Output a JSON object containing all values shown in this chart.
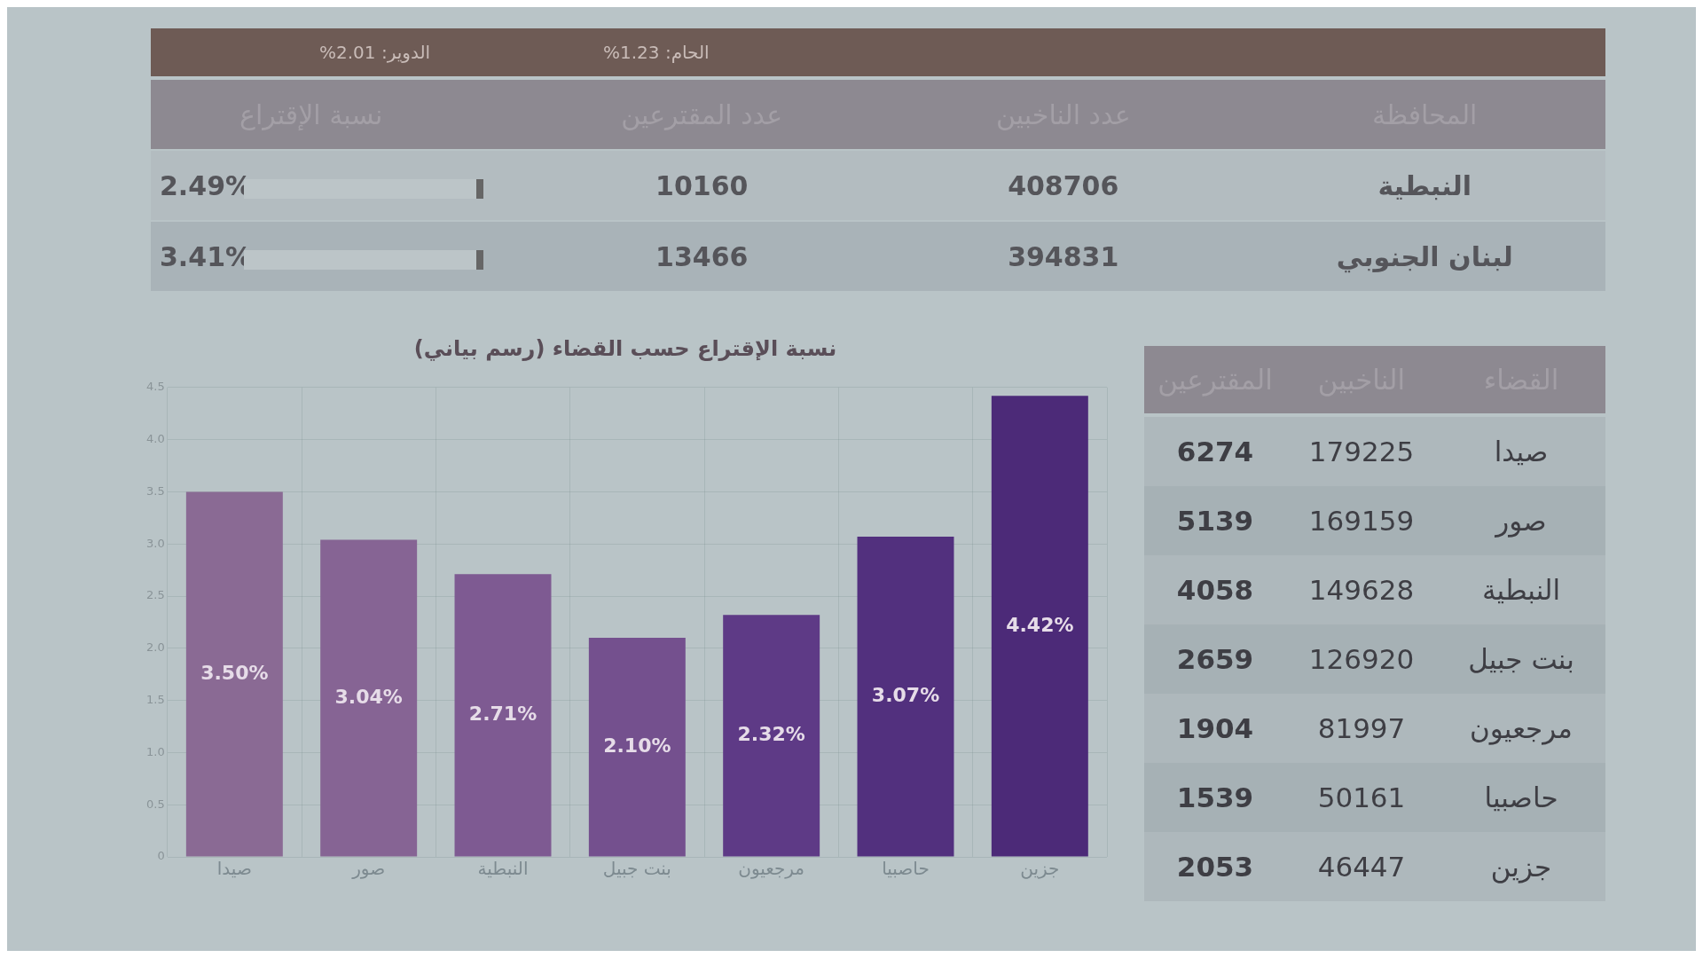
{
  "chart_data": [
    {
      "type": "other",
      "annotations": [
        "الدوير: 2.01%",
        "الحام: 1.23%",
        "نسبة الإقتراع",
        "عدد المقترعين",
        "عدد الناخبين",
        "المحافظة",
        "2.49%",
        "10160",
        "408706",
        "النبطية",
        "3.41%",
        "13466",
        "394831",
        "لبنان الجنوبي"
      ]
    },
    {
      "type": "bar",
      "title": "نسبة الإقتراع حسب القضاء (رسم بياني)",
      "categories": [
        "صيدا",
        "صور",
        "النبطية",
        "بنت جبيل",
        "مرجعيون",
        "حاصبيا",
        "جزين"
      ],
      "values": [
        3.5,
        3.04,
        2.71,
        2.1,
        2.32,
        3.07,
        4.42
      ],
      "value_labels": [
        "3.50%",
        "3.04%",
        "2.71%",
        "2.10%",
        "2.32%",
        "3.07%",
        "4.42%"
      ],
      "colors": [
        "#8a6a94",
        "#866494",
        "#7e5a92",
        "#74508e",
        "#5e3a86",
        "#52307e",
        "#4c2a78"
      ],
      "ylim": [
        0,
        4.5
      ],
      "yticks": [
        {
          "value": 0,
          "label": "0"
        },
        {
          "value": 0.5,
          "label": "0.5"
        },
        {
          "value": 1,
          "label": "1.0"
        },
        {
          "value": 1.5,
          "label": "1.5"
        },
        {
          "value": 2,
          "label": "2.0"
        },
        {
          "value": 2.5,
          "label": "2.5"
        },
        {
          "value": 3,
          "label": "3.0"
        },
        {
          "value": 3.5,
          "label": "3.5"
        },
        {
          "value": 4,
          "label": "4.0"
        },
        {
          "value": 4.5,
          "label": "4.5"
        }
      ],
      "grid": true
    },
    {
      "type": "other",
      "annotations": [
        "القضاء",
        "الناخبين",
        "المقترعين",
        "صيدا",
        "179225",
        "6274",
        "صور",
        "169159",
        "5139",
        "النبطية",
        "149628",
        "4058",
        "بنت جبيل",
        "126920",
        "2659",
        "مرجعيون",
        "81997",
        "1904",
        "حاصبيا",
        "50161",
        "1539",
        "جزين",
        "46447",
        "2053"
      ]
    }
  ]
}
